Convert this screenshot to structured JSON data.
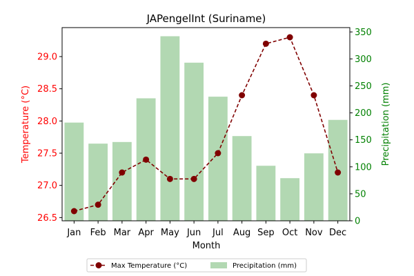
{
  "chart_data": {
    "type": "bar+line",
    "title": "JAPengelInt (Suriname)",
    "xlabel": "Month",
    "categories": [
      "Jan",
      "Feb",
      "Mar",
      "Apr",
      "May",
      "Jun",
      "Jul",
      "Aug",
      "Sep",
      "Oct",
      "Nov",
      "Dec"
    ],
    "left_axis": {
      "label": "Temperature (°C)",
      "color": "#ff0000",
      "ylim": [
        26.45,
        29.45
      ],
      "ticks": [
        "26.5",
        "27.0",
        "27.5",
        "28.0",
        "28.5",
        "29.0"
      ]
    },
    "right_axis": {
      "label": "Precipitation (mm)",
      "color": "#008000",
      "ylim": [
        0,
        358
      ],
      "ticks": [
        "0",
        "50",
        "100",
        "150",
        "200",
        "250",
        "300",
        "350"
      ]
    },
    "series": [
      {
        "name": "Max Temperature (°C)",
        "kind": "line",
        "axis": "left",
        "color": "#800000",
        "linestyle": "dashed",
        "marker": "circle",
        "values": [
          26.6,
          26.7,
          27.2,
          27.4,
          27.1,
          27.1,
          27.5,
          28.4,
          29.2,
          29.3,
          28.4,
          27.2
        ]
      },
      {
        "name": "Precipitation (mm)",
        "kind": "bar",
        "axis": "right",
        "color": "#b2d8b2",
        "values": [
          182,
          143,
          146,
          227,
          342,
          293,
          230,
          157,
          102,
          79,
          125,
          187
        ]
      }
    ],
    "legend": {
      "placement": "bottom-center",
      "columns": 2
    },
    "grid": false
  }
}
